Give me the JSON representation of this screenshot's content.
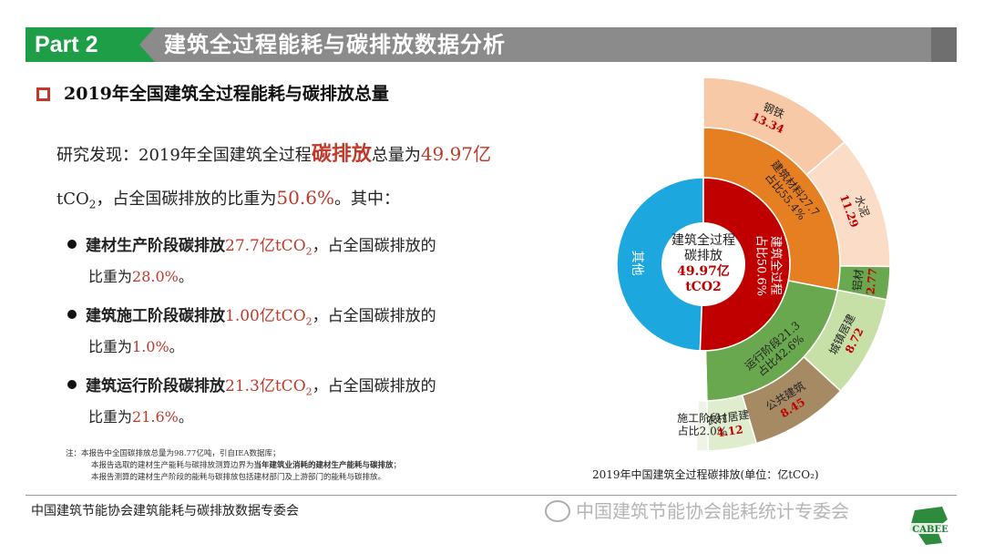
{
  "header": {
    "part_label": "Part 2",
    "title": "建筑全过程能耗与碳排放数据分析"
  },
  "subtitle": "2019年全国建筑全过程能耗与碳排放总量",
  "finding": {
    "prefix": "研究发现：2019年全国建筑全过程",
    "keyword": "碳排放",
    "mid": "总量为",
    "total": "49.97亿",
    "unit_line": "tCO",
    "unit_sub": "2",
    "mid2": "，占全国碳排放的比重为",
    "share": "50.6%",
    "suffix": "。其中："
  },
  "bullets": [
    {
      "label": "建材生产阶段碳排放",
      "value": "27.7亿tCO",
      "sub": "2",
      "tail": "，占全国碳排放的",
      "share_prefix": "比重为",
      "share": "28.0%",
      "share_suffix": "。"
    },
    {
      "label": "建筑施工阶段碳排放",
      "value": "1.00亿tCO",
      "sub": "2",
      "tail": "，占全国碳排放的",
      "share_prefix": "比重为",
      "share": "1.0%",
      "share_suffix": "。"
    },
    {
      "label": "建筑运行阶段碳排放",
      "value": "21.3亿tCO",
      "sub": "2",
      "tail": "，占全国碳排放的",
      "share_prefix": "比重为",
      "share": "21.6%",
      "share_suffix": "。"
    }
  ],
  "notes": {
    "line1": "注：本报告中全国碳排放总量为98.77亿吨，引自IEA数据库；",
    "line2_a": "本报告选取的建材生产能耗与碳排放测算边界为",
    "line2_b": "当年建筑业消耗的建材生产能耗与碳排放",
    "line2_c": "；",
    "line3": "本报告测算的建材生产阶段的能耗与碳排放包括建材部门及上游部门的能耗与碳排放。"
  },
  "chart_caption": "2019年中国建筑全过程碳排放(单位：亿tCO₂)",
  "footer": {
    "org": "中国建筑节能协会建筑能耗与碳排放数据专委会",
    "watermark": "中国建筑节能协会能耗统计专委会",
    "logo_text": "CABEE"
  },
  "chart_data": {
    "type": "pie",
    "center": {
      "line1": "建筑全过程",
      "line2": "碳排放",
      "line3": "49.97亿",
      "line4": "tCO2"
    },
    "inner_ring": [
      {
        "label": "其他",
        "value": 49.4,
        "color": "#1ca7df"
      },
      {
        "label": "建筑全过程",
        "share_label": "占比50.6%",
        "value": 50.6,
        "color": "#c00000"
      }
    ],
    "middle_ring": [
      {
        "label": "建筑材料27.7",
        "share_label": "占比55.4%",
        "value": 27.7,
        "color": "#e67e22"
      },
      {
        "label": "运行阶段21.3",
        "share_label": "占比42.6%",
        "value": 21.3,
        "color": "#6aa84f"
      },
      {
        "label": "施工阶段1",
        "share_label": "占比2.0%",
        "value": 1.0,
        "color": "#ffffff"
      }
    ],
    "outer_ring": [
      {
        "label": "钢铁",
        "value": 13.34,
        "value_label": "13.34",
        "color": "#f8c9a6"
      },
      {
        "label": "水泥",
        "value": 11.29,
        "value_label": "11.29",
        "color": "#fbdcc6"
      },
      {
        "label": "铝材",
        "value": 2.77,
        "value_label": "2.77",
        "color": "#6aa84f"
      },
      {
        "label": "城镇居建",
        "value": 8.72,
        "value_label": "8.72",
        "color": "#c7e0a8"
      },
      {
        "label": "公共建筑",
        "value": 8.45,
        "value_label": "8.45",
        "color": "#a68a64"
      },
      {
        "label": "农村居建",
        "value": 4.12,
        "value_label": "4.12",
        "color": "#dfeccd"
      },
      {
        "label": "",
        "value": 1.0,
        "value_label": "",
        "color": "#eef4e6"
      }
    ],
    "colors": {
      "accent_red": "#c0392b",
      "banner_green": "#1e9e47",
      "banner_gray": "#8b8b8b"
    }
  }
}
